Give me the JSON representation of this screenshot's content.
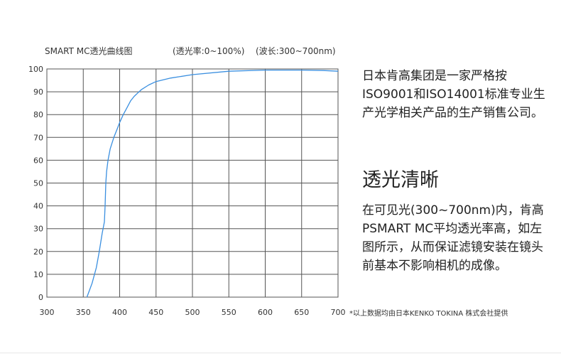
{
  "header": {
    "title": "SMART MC透光曲线图",
    "y_note": "(透光率:0~100%)",
    "x_note": "(波长:300~700nm)"
  },
  "chart_data": {
    "type": "line",
    "title": "SMART MC透光曲线图",
    "xlabel": "(波长:300~700nm)",
    "ylabel": "(透光率:0~100%)",
    "xlim": [
      300,
      700
    ],
    "ylim": [
      0,
      100
    ],
    "x_ticks": [
      "300",
      "350",
      "400",
      "450",
      "500",
      "550",
      "600",
      "650",
      "700"
    ],
    "y_ticks": [
      "0",
      "10",
      "20",
      "30",
      "40",
      "50",
      "60",
      "70",
      "80",
      "90",
      "100"
    ],
    "grid": true,
    "series": [
      {
        "color": "#3a8fe0",
        "x": [
          355,
          362,
          368,
          372,
          376,
          379,
          380,
          381,
          382,
          384,
          387,
          392,
          397,
          400,
          405,
          410,
          415,
          420,
          425,
          430,
          440,
          450,
          470,
          500,
          550,
          600,
          650,
          680,
          700
        ],
        "y": [
          0,
          6,
          13,
          20,
          28,
          33,
          40,
          50,
          55,
          60,
          65,
          70,
          74,
          76.5,
          80,
          83,
          86,
          88,
          89.5,
          91,
          93,
          94.5,
          96,
          97.5,
          99,
          99.5,
          99.5,
          99.3,
          99
        ]
      }
    ]
  },
  "side": {
    "para1": "日本肯高集团是一家严格按ISO9001和ISO14001标准专业生产光学相关产品的生产销售公司。",
    "heading": "透光清晰",
    "para2": "在可见光(300~700nm)内，肯高PSMART MC平均透光率高，如左图所示，从而保证滤镜安装在镜头前基本不影响相机的成像。"
  },
  "footer": {
    "source": "*以上数据均由日本KENKO TOKINA 株式会社提供"
  }
}
